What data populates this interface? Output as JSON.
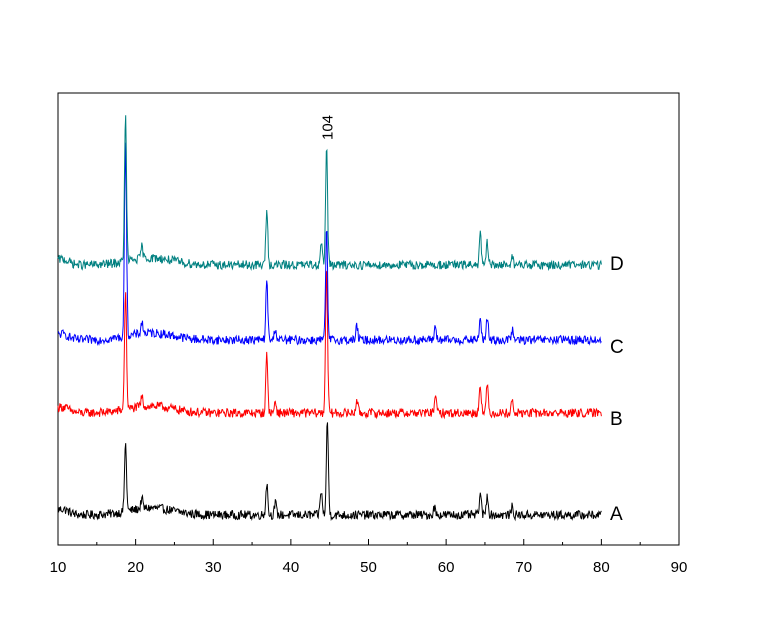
{
  "chart_data": {
    "type": "line",
    "title": "",
    "xlabel": "",
    "ylabel": "",
    "xlim": [
      10,
      90
    ],
    "xticks": [
      "10",
      "20",
      "30",
      "40",
      "50",
      "60",
      "70",
      "80",
      "90"
    ],
    "grid": false,
    "x_range_of_series": [
      10,
      80
    ],
    "annotations": [
      {
        "text": "104",
        "x": 44.6,
        "series": "D"
      }
    ],
    "series": [
      {
        "name": "A",
        "color": "#000000",
        "baseline": 0,
        "peaks": [
          {
            "x": 18.7,
            "height": 68
          },
          {
            "x": 20.8,
            "height": 10
          },
          {
            "x": 36.9,
            "height": 32
          },
          {
            "x": 38.0,
            "height": 12
          },
          {
            "x": 43.9,
            "height": 25
          },
          {
            "x": 44.7,
            "height": 95
          },
          {
            "x": 58.5,
            "height": 8
          },
          {
            "x": 64.4,
            "height": 22
          },
          {
            "x": 65.3,
            "height": 20
          },
          {
            "x": 68.5,
            "height": 8
          }
        ]
      },
      {
        "name": "B",
        "color": "#ff0000",
        "baseline": 0,
        "peaks": [
          {
            "x": 18.7,
            "height": 120
          },
          {
            "x": 20.8,
            "height": 10
          },
          {
            "x": 36.9,
            "height": 58
          },
          {
            "x": 38.0,
            "height": 12
          },
          {
            "x": 44.6,
            "height": 150
          },
          {
            "x": 48.5,
            "height": 14
          },
          {
            "x": 58.6,
            "height": 18
          },
          {
            "x": 64.4,
            "height": 30
          },
          {
            "x": 65.3,
            "height": 28
          },
          {
            "x": 68.5,
            "height": 12
          }
        ]
      },
      {
        "name": "C",
        "color": "#0000ff",
        "baseline": 0,
        "peaks": [
          {
            "x": 18.7,
            "height": 200
          },
          {
            "x": 20.8,
            "height": 12
          },
          {
            "x": 36.9,
            "height": 58
          },
          {
            "x": 38.0,
            "height": 12
          },
          {
            "x": 44.6,
            "height": 110
          },
          {
            "x": 48.5,
            "height": 14
          },
          {
            "x": 58.6,
            "height": 14
          },
          {
            "x": 64.4,
            "height": 22
          },
          {
            "x": 65.3,
            "height": 22
          },
          {
            "x": 68.5,
            "height": 10
          }
        ]
      },
      {
        "name": "D",
        "color": "#008080",
        "baseline": 0,
        "peaks": [
          {
            "x": 18.7,
            "height": 145
          },
          {
            "x": 20.8,
            "height": 12
          },
          {
            "x": 36.9,
            "height": 55
          },
          {
            "x": 43.9,
            "height": 25
          },
          {
            "x": 44.6,
            "height": 120
          },
          {
            "x": 64.4,
            "height": 30
          },
          {
            "x": 65.3,
            "height": 22
          },
          {
            "x": 68.5,
            "height": 10
          }
        ]
      }
    ]
  }
}
